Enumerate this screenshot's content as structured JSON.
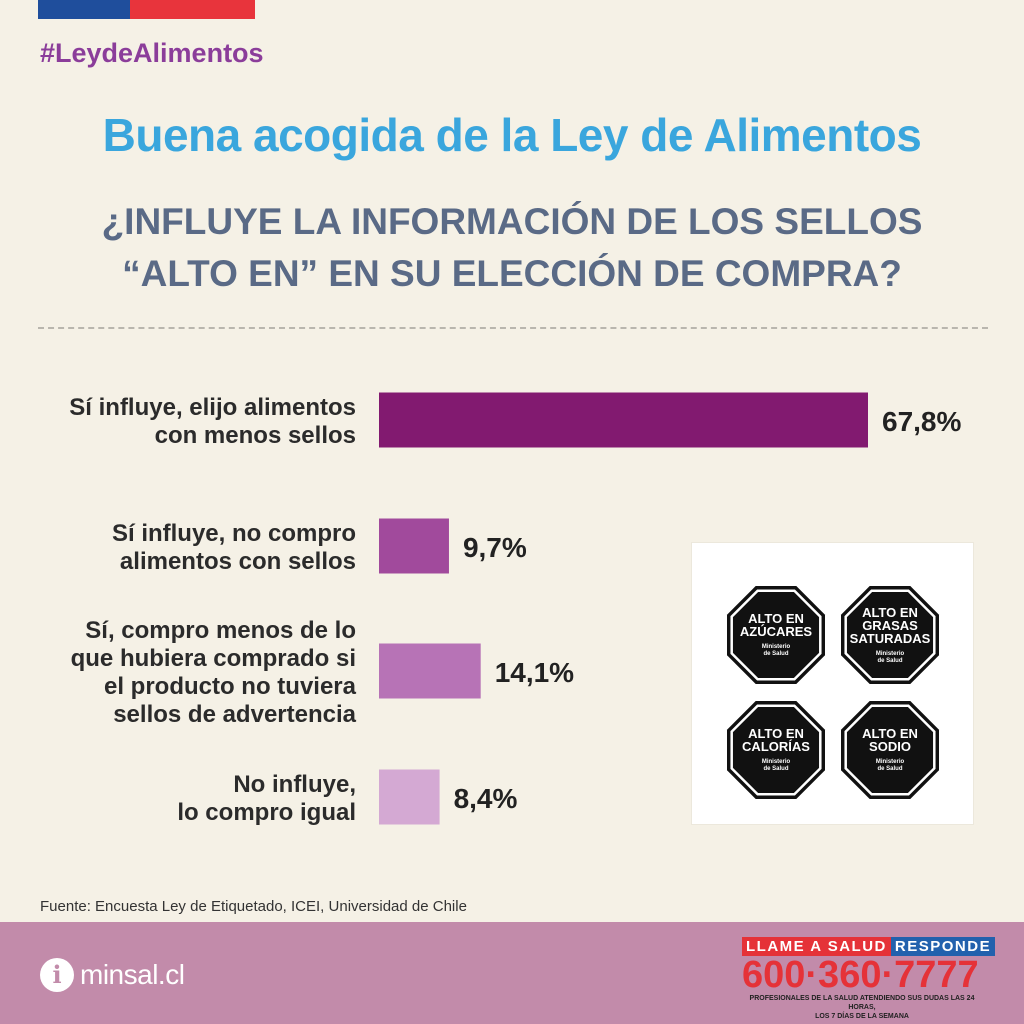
{
  "hashtag": "#LeydeAlimentos",
  "title": "Buena acogida de la Ley de Alimentos",
  "subtitle": {
    "line1": "¿INFLUYE LA INFORMACIÓN DE LOS SELLOS",
    "line2": "“ALTO EN” EN SU ELECCIÓN DE COMPRA?"
  },
  "chart_data": {
    "type": "bar",
    "orientation": "horizontal",
    "categories": [
      [
        "Sí influye, elijo alimentos",
        "con menos sellos"
      ],
      [
        "Sí influye, no compro",
        "alimentos con sellos"
      ],
      [
        "Sí, compro menos de lo",
        "que hubiera comprado si",
        "el producto no tuviera",
        "sellos de advertencia"
      ],
      [
        "No influye,",
        "lo compro igual"
      ]
    ],
    "values": [
      67.8,
      9.7,
      14.1,
      8.4
    ],
    "value_labels": [
      "67,8%",
      "9,7%",
      "14,1%",
      "8,4%"
    ],
    "colors": [
      "#821a70",
      "#a14a9c",
      "#b773b6",
      "#d4a9d3"
    ],
    "xlim": [
      0,
      67.8
    ],
    "grid": false
  },
  "seals": [
    {
      "lines": [
        "ALTO EN",
        "AZÚCARES"
      ],
      "ministry": [
        "Ministerio",
        "de Salud"
      ]
    },
    {
      "lines": [
        "ALTO EN",
        "GRASAS",
        "SATURADAS"
      ],
      "ministry": [
        "Ministerio",
        "de Salud"
      ]
    },
    {
      "lines": [
        "ALTO EN",
        "CALORÍAS"
      ],
      "ministry": [
        "Ministerio",
        "de Salud"
      ]
    },
    {
      "lines": [
        "ALTO EN",
        "SODIO"
      ],
      "ministry": [
        "Ministerio",
        "de Salud"
      ]
    }
  ],
  "source": "Fuente: Encuesta Ley de Etiquetado, ICEI, Universidad de Chile",
  "footer": {
    "info_icon": "info-icon",
    "site": "minsal.cl",
    "hotline_label_part1": "LLAME A SALUD",
    "hotline_label_part2": "RESPONDE",
    "hotline_number": "600·360·7777",
    "hotline_note_line1": "PROFESIONALES DE LA SALUD ATENDIENDO SUS DUDAS LAS 24 HORAS,",
    "hotline_note_line2": "LOS 7 DÍAS DE LA SEMANA"
  },
  "colors": {
    "hashtag": "#8b3d9a",
    "title": "#3aa6dd",
    "subtitle": "#5a6a86",
    "footer": "#c28baa",
    "hotline_red": "#e53238",
    "hotline_blue": "#2261ad"
  }
}
